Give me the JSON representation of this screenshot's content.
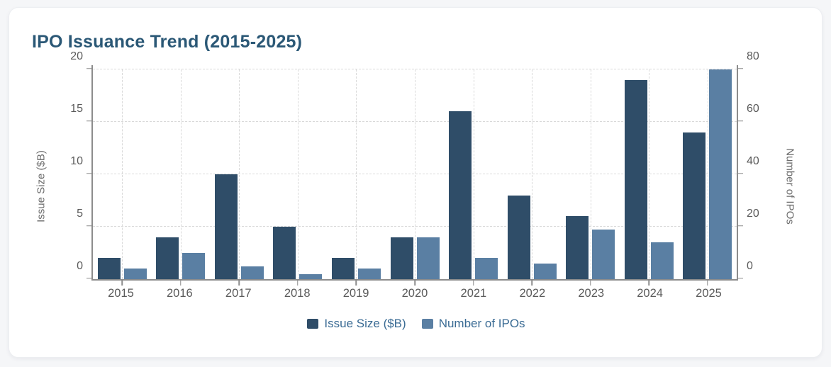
{
  "page": {
    "title": "IPO Issuance Trend (2015-2025)"
  },
  "chart_data": {
    "type": "bar",
    "title": "IPO Issuance Trend (2015-2025)",
    "categories": [
      "2015",
      "2016",
      "2017",
      "2018",
      "2019",
      "2020",
      "2021",
      "2022",
      "2023",
      "2024",
      "2025"
    ],
    "series": [
      {
        "name": "Issue Size ($B)",
        "axis": "left",
        "color": "#2f4d68",
        "values": [
          2,
          4,
          10,
          5,
          2,
          4,
          16,
          8,
          6,
          19,
          14
        ]
      },
      {
        "name": "Number of IPOs",
        "axis": "right",
        "color": "#5a7fa3",
        "values": [
          4,
          10,
          5,
          2,
          4,
          16,
          8,
          6,
          19,
          14,
          80
        ]
      }
    ],
    "left_axis": {
      "label": "Issue Size ($B)",
      "min": 0,
      "max": 20,
      "ticks": [
        0,
        5,
        10,
        15,
        20
      ]
    },
    "right_axis": {
      "label": "Number of IPOs",
      "min": 0,
      "max": 80,
      "ticks": [
        0,
        20,
        40,
        60,
        80
      ]
    },
    "grid": "dashed",
    "legend_position": "bottom"
  },
  "colors": {
    "title": "#2b5876",
    "legend_text": "#3a6b94",
    "axis_text": "#5a5a5a",
    "axis_line": "#8c8c8c",
    "grid_line": "#d9d9d9",
    "bar_dark": "#2f4d68",
    "bar_light": "#5a7fa3",
    "card_bg": "#ffffff",
    "page_bg": "#f5f6f8"
  }
}
